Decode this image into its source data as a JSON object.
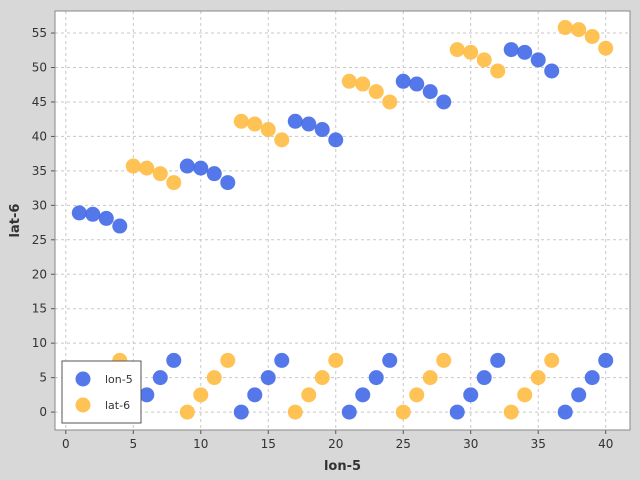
{
  "chart_data": {
    "type": "scatter",
    "xlabel": "lon-5",
    "ylabel": "lat-6",
    "xlim": [
      -0.8,
      41.8
    ],
    "ylim": [
      -2.6,
      58.2
    ],
    "xticks": [
      0,
      5,
      10,
      15,
      20,
      25,
      30,
      35,
      40
    ],
    "yticks": [
      0,
      5,
      10,
      15,
      20,
      25,
      30,
      35,
      40,
      45,
      50,
      55
    ],
    "grid": true,
    "legend": {
      "position": "bottom-left"
    },
    "colors": {
      "background": "#ffffff",
      "grid": "#c8c8c8",
      "outer": "#d8d8d8"
    },
    "series": [
      {
        "name": "lon-5",
        "color": "#4169e8",
        "x": [
          1,
          2,
          3,
          4,
          5,
          6,
          7,
          8,
          9,
          10,
          11,
          12,
          13,
          14,
          15,
          16,
          17,
          18,
          19,
          20,
          21,
          22,
          23,
          24,
          25,
          26,
          27,
          28,
          29,
          30,
          31,
          32,
          33,
          34,
          35,
          36,
          37,
          38,
          39,
          40
        ],
        "y": [
          28.9,
          28.7,
          28.1,
          27.0,
          0,
          2.5,
          5.0,
          7.5,
          35.7,
          35.4,
          34.6,
          33.3,
          0,
          2.5,
          5.0,
          7.5,
          42.2,
          41.8,
          41.0,
          39.5,
          0,
          2.5,
          5.0,
          7.5,
          48.0,
          47.6,
          46.5,
          45.0,
          0,
          2.5,
          5.0,
          7.5,
          52.6,
          52.2,
          51.1,
          49.5,
          0,
          2.5,
          5.0,
          7.5
        ]
      },
      {
        "name": "lat-6",
        "color": "#ffbc42",
        "x": [
          1,
          2,
          3,
          4,
          5,
          6,
          7,
          8,
          9,
          10,
          11,
          12,
          13,
          14,
          15,
          16,
          17,
          18,
          19,
          20,
          21,
          22,
          23,
          24,
          25,
          26,
          27,
          28,
          29,
          30,
          31,
          32,
          33,
          34,
          35,
          36,
          37,
          38,
          39,
          40
        ],
        "y": [
          0,
          2.5,
          5.0,
          7.5,
          35.7,
          35.4,
          34.6,
          33.3,
          0,
          2.5,
          5.0,
          7.5,
          42.2,
          41.8,
          41.0,
          39.5,
          0,
          2.5,
          5.0,
          7.5,
          48.0,
          47.6,
          46.5,
          45.0,
          0,
          2.5,
          5.0,
          7.5,
          52.6,
          52.2,
          51.1,
          49.5,
          0,
          2.5,
          5.0,
          7.5,
          55.8,
          55.5,
          54.5,
          52.8
        ]
      }
    ]
  }
}
